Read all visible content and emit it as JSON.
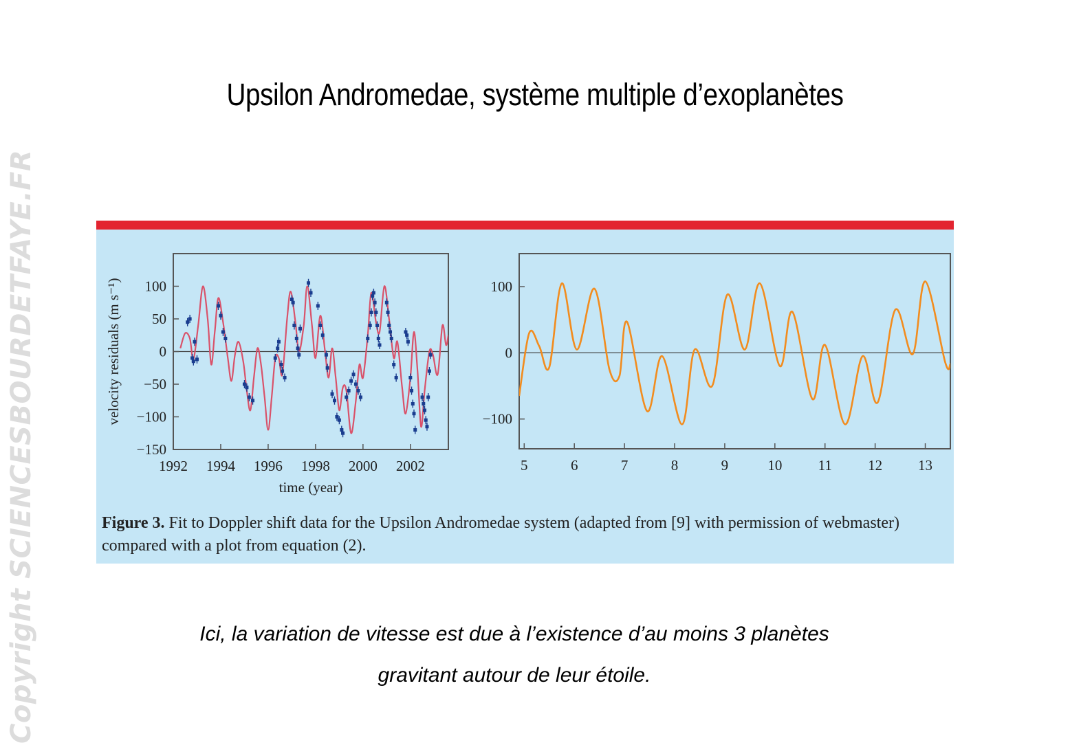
{
  "slide": {
    "title": "Upsilon Andromedae, système multiple d’exoplanètes",
    "watermark": "Copyright SCIENCESBOURDETFAYE.FR",
    "bottom_text_line1": "Ici, la variation de vitesse est due à l’existence d’au moins 3 planètes",
    "bottom_text_line2": "gravitant autour de leur étoile."
  },
  "figure": {
    "caption_label": "Figure 3.",
    "caption_text": " Fit to Doppler shift data for the Upsilon Andromedae system (adapted from [9] with permission of webmaster) compared with a plot from equation (2).",
    "colors": {
      "panel": "#c5e6f6",
      "bar": "#e32430",
      "fit_curve": "#d9526a",
      "data_points": "#1a3d8f",
      "model_curve": "#f28c1e"
    }
  },
  "chart_data": [
    {
      "type": "scatter",
      "xlabel": "time (year)",
      "ylabel": "velocity residuals (m s⁻¹)",
      "xlim": [
        1992,
        2003.6
      ],
      "ylim": [
        -150,
        150
      ],
      "x_ticks": [
        1992,
        1994,
        1996,
        1998,
        2000,
        2002
      ],
      "y_ticks": [
        100,
        50,
        0,
        -50,
        -100,
        -150
      ],
      "fit_curve": [
        [
          1992.3,
          5
        ],
        [
          1992.5,
          28
        ],
        [
          1992.7,
          20
        ],
        [
          1992.85,
          -12
        ],
        [
          1993.05,
          40
        ],
        [
          1993.25,
          100
        ],
        [
          1993.45,
          50
        ],
        [
          1993.6,
          -20
        ],
        [
          1993.75,
          30
        ],
        [
          1993.9,
          82
        ],
        [
          1994.1,
          45
        ],
        [
          1994.3,
          -10
        ],
        [
          1994.45,
          -45
        ],
        [
          1994.6,
          -5
        ],
        [
          1994.75,
          15
        ],
        [
          1994.95,
          -15
        ],
        [
          1995.1,
          -60
        ],
        [
          1995.25,
          -90
        ],
        [
          1995.4,
          -40
        ],
        [
          1995.55,
          5
        ],
        [
          1995.7,
          -20
        ],
        [
          1995.85,
          -70
        ],
        [
          1996.0,
          -120
        ],
        [
          1996.15,
          -70
        ],
        [
          1996.3,
          -10
        ],
        [
          1996.45,
          -10
        ],
        [
          1996.6,
          -35
        ],
        [
          1996.8,
          50
        ],
        [
          1996.95,
          92
        ],
        [
          1997.15,
          45
        ],
        [
          1997.3,
          0
        ],
        [
          1997.5,
          40
        ],
        [
          1997.65,
          100
        ],
        [
          1997.85,
          40
        ],
        [
          1998.0,
          -10
        ],
        [
          1998.2,
          55
        ],
        [
          1998.4,
          0
        ],
        [
          1998.55,
          -40
        ],
        [
          1998.7,
          5
        ],
        [
          1998.85,
          -40
        ],
        [
          1999.0,
          -90
        ],
        [
          1999.15,
          -55
        ],
        [
          1999.3,
          -60
        ],
        [
          1999.5,
          -125
        ],
        [
          1999.7,
          -75
        ],
        [
          1999.85,
          -20
        ],
        [
          2000.0,
          -40
        ],
        [
          2000.2,
          25
        ],
        [
          2000.35,
          90
        ],
        [
          2000.55,
          45
        ],
        [
          2000.7,
          30
        ],
        [
          2000.9,
          100
        ],
        [
          2001.1,
          50
        ],
        [
          2001.3,
          -10
        ],
        [
          2001.45,
          15
        ],
        [
          2001.65,
          -55
        ],
        [
          2001.8,
          -95
        ],
        [
          2002.0,
          -40
        ],
        [
          2002.15,
          30
        ],
        [
          2002.3,
          -30
        ],
        [
          2002.45,
          -115
        ],
        [
          2002.6,
          -60
        ],
        [
          2002.8,
          0
        ],
        [
          2002.95,
          -5
        ],
        [
          2003.15,
          -35
        ],
        [
          2003.35,
          40
        ],
        [
          2003.5,
          10
        ],
        [
          2003.6,
          25
        ]
      ],
      "data_points": [
        [
          1992.6,
          45
        ],
        [
          1992.7,
          50
        ],
        [
          1992.8,
          -10
        ],
        [
          1992.85,
          -15
        ],
        [
          1992.9,
          15
        ],
        [
          1993.0,
          -12
        ],
        [
          1993.9,
          70
        ],
        [
          1994.0,
          55
        ],
        [
          1994.1,
          30
        ],
        [
          1994.2,
          20
        ],
        [
          1995.0,
          -50
        ],
        [
          1995.1,
          -55
        ],
        [
          1995.2,
          -70
        ],
        [
          1995.35,
          -75
        ],
        [
          1996.3,
          -10
        ],
        [
          1996.4,
          5
        ],
        [
          1996.45,
          15
        ],
        [
          1996.55,
          -20
        ],
        [
          1996.6,
          -30
        ],
        [
          1996.7,
          -40
        ],
        [
          1997.0,
          80
        ],
        [
          1997.05,
          75
        ],
        [
          1997.1,
          40
        ],
        [
          1997.2,
          20
        ],
        [
          1997.25,
          5
        ],
        [
          1997.3,
          -5
        ],
        [
          1997.35,
          35
        ],
        [
          1997.7,
          105
        ],
        [
          1997.8,
          90
        ],
        [
          1998.1,
          70
        ],
        [
          1998.2,
          40
        ],
        [
          1998.3,
          25
        ],
        [
          1998.45,
          -5
        ],
        [
          1998.5,
          -25
        ],
        [
          1998.7,
          -65
        ],
        [
          1998.8,
          -75
        ],
        [
          1998.9,
          -100
        ],
        [
          1999.0,
          -105
        ],
        [
          1999.1,
          -120
        ],
        [
          1999.15,
          -125
        ],
        [
          1999.3,
          -70
        ],
        [
          1999.4,
          -60
        ],
        [
          1999.5,
          -45
        ],
        [
          1999.6,
          -35
        ],
        [
          1999.7,
          -50
        ],
        [
          1999.8,
          -60
        ],
        [
          1999.9,
          -70
        ],
        [
          2000.2,
          20
        ],
        [
          2000.3,
          40
        ],
        [
          2000.35,
          60
        ],
        [
          2000.4,
          85
        ],
        [
          2000.45,
          90
        ],
        [
          2000.5,
          75
        ],
        [
          2000.55,
          60
        ],
        [
          2000.6,
          40
        ],
        [
          2000.65,
          20
        ],
        [
          2000.7,
          10
        ],
        [
          2001.0,
          75
        ],
        [
          2001.05,
          60
        ],
        [
          2001.1,
          40
        ],
        [
          2001.15,
          30
        ],
        [
          2001.2,
          20
        ],
        [
          2001.3,
          -20
        ],
        [
          2001.4,
          -40
        ],
        [
          2001.8,
          30
        ],
        [
          2001.85,
          25
        ],
        [
          2001.9,
          15
        ],
        [
          2002.0,
          -40
        ],
        [
          2002.05,
          -60
        ],
        [
          2002.1,
          -80
        ],
        [
          2002.15,
          -95
        ],
        [
          2002.2,
          -120
        ],
        [
          2002.5,
          -70
        ],
        [
          2002.55,
          -80
        ],
        [
          2002.6,
          -90
        ],
        [
          2002.65,
          -105
        ],
        [
          2002.7,
          -115
        ],
        [
          2002.75,
          -70
        ],
        [
          2002.8,
          -30
        ],
        [
          2002.85,
          -5
        ]
      ]
    },
    {
      "type": "line",
      "xlabel": "",
      "ylabel": "",
      "xlim": [
        4.9,
        13.5
      ],
      "ylim": [
        -145,
        150
      ],
      "x_ticks": [
        5,
        6,
        7,
        8,
        9,
        10,
        11,
        12,
        13
      ],
      "y_ticks": [
        100,
        0,
        -100
      ],
      "series": [
        {
          "values": [
            [
              4.9,
              -65
            ],
            [
              5.1,
              30
            ],
            [
              5.3,
              10
            ],
            [
              5.5,
              -22
            ],
            [
              5.75,
              105
            ],
            [
              6.05,
              5
            ],
            [
              6.4,
              97
            ],
            [
              6.7,
              -25
            ],
            [
              6.9,
              -35
            ],
            [
              7.05,
              47
            ],
            [
              7.45,
              -88
            ],
            [
              7.75,
              -5
            ],
            [
              8.15,
              -108
            ],
            [
              8.4,
              5
            ],
            [
              8.75,
              -50
            ],
            [
              9.05,
              88
            ],
            [
              9.4,
              5
            ],
            [
              9.7,
              105
            ],
            [
              10.1,
              -20
            ],
            [
              10.35,
              62
            ],
            [
              10.75,
              -70
            ],
            [
              11.0,
              12
            ],
            [
              11.4,
              -108
            ],
            [
              11.75,
              -5
            ],
            [
              12.05,
              -75
            ],
            [
              12.4,
              65
            ],
            [
              12.75,
              -2
            ],
            [
              13.0,
              108
            ],
            [
              13.4,
              -15
            ],
            [
              13.5,
              -17
            ]
          ]
        }
      ]
    }
  ]
}
